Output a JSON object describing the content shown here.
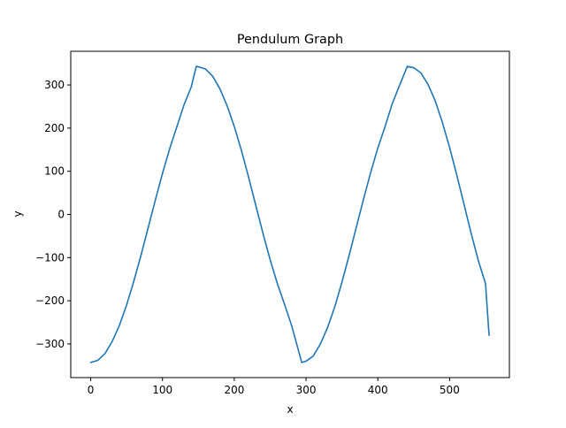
{
  "chart_data": {
    "type": "line",
    "title": "Pendulum Graph",
    "xlabel": "x",
    "ylabel": "y",
    "xlim": [
      -27.8,
      583.3
    ],
    "ylim": [
      -378,
      378
    ],
    "xticks": [
      0,
      100,
      200,
      300,
      400,
      500
    ],
    "yticks": [
      -300,
      -200,
      -100,
      0,
      100,
      200,
      300
    ],
    "xtick_labels": [
      "0",
      "100",
      "200",
      "300",
      "400",
      "500"
    ],
    "ytick_labels": [
      "−300",
      "−200",
      "−100",
      "0",
      "100",
      "200",
      "300"
    ],
    "grid": false,
    "series_color": "#1f77b4",
    "series": [
      {
        "x": [
          0,
          10,
          20,
          30,
          40,
          50,
          60,
          70,
          80,
          90,
          100,
          110,
          120,
          130,
          140,
          147,
          150,
          160,
          170,
          180,
          190,
          200,
          210,
          220,
          230,
          240,
          250,
          260,
          270,
          280,
          294,
          300,
          310,
          320,
          330,
          340,
          350,
          360,
          370,
          380,
          390,
          400,
          410,
          420,
          430,
          441,
          450,
          460,
          470,
          480,
          490,
          500,
          510,
          520,
          530,
          540,
          550,
          555
        ],
        "y": [
          -343,
          -338,
          -322,
          -294,
          -257,
          -210,
          -155,
          -95,
          -31,
          33,
          95,
          152,
          203,
          254,
          295,
          343,
          342,
          337,
          320,
          291,
          252,
          204,
          148,
          86,
          21,
          -44,
          -105,
          -160,
          -208,
          -258,
          -343,
          -340,
          -328,
          -300,
          -262,
          -214,
          -157,
          -95,
          -30,
          35,
          97,
          154,
          203,
          256,
          298,
          343,
          340,
          328,
          301,
          263,
          213,
          155,
          91,
          24,
          -44,
          -107,
          -160,
          -280
        ]
      }
    ]
  }
}
